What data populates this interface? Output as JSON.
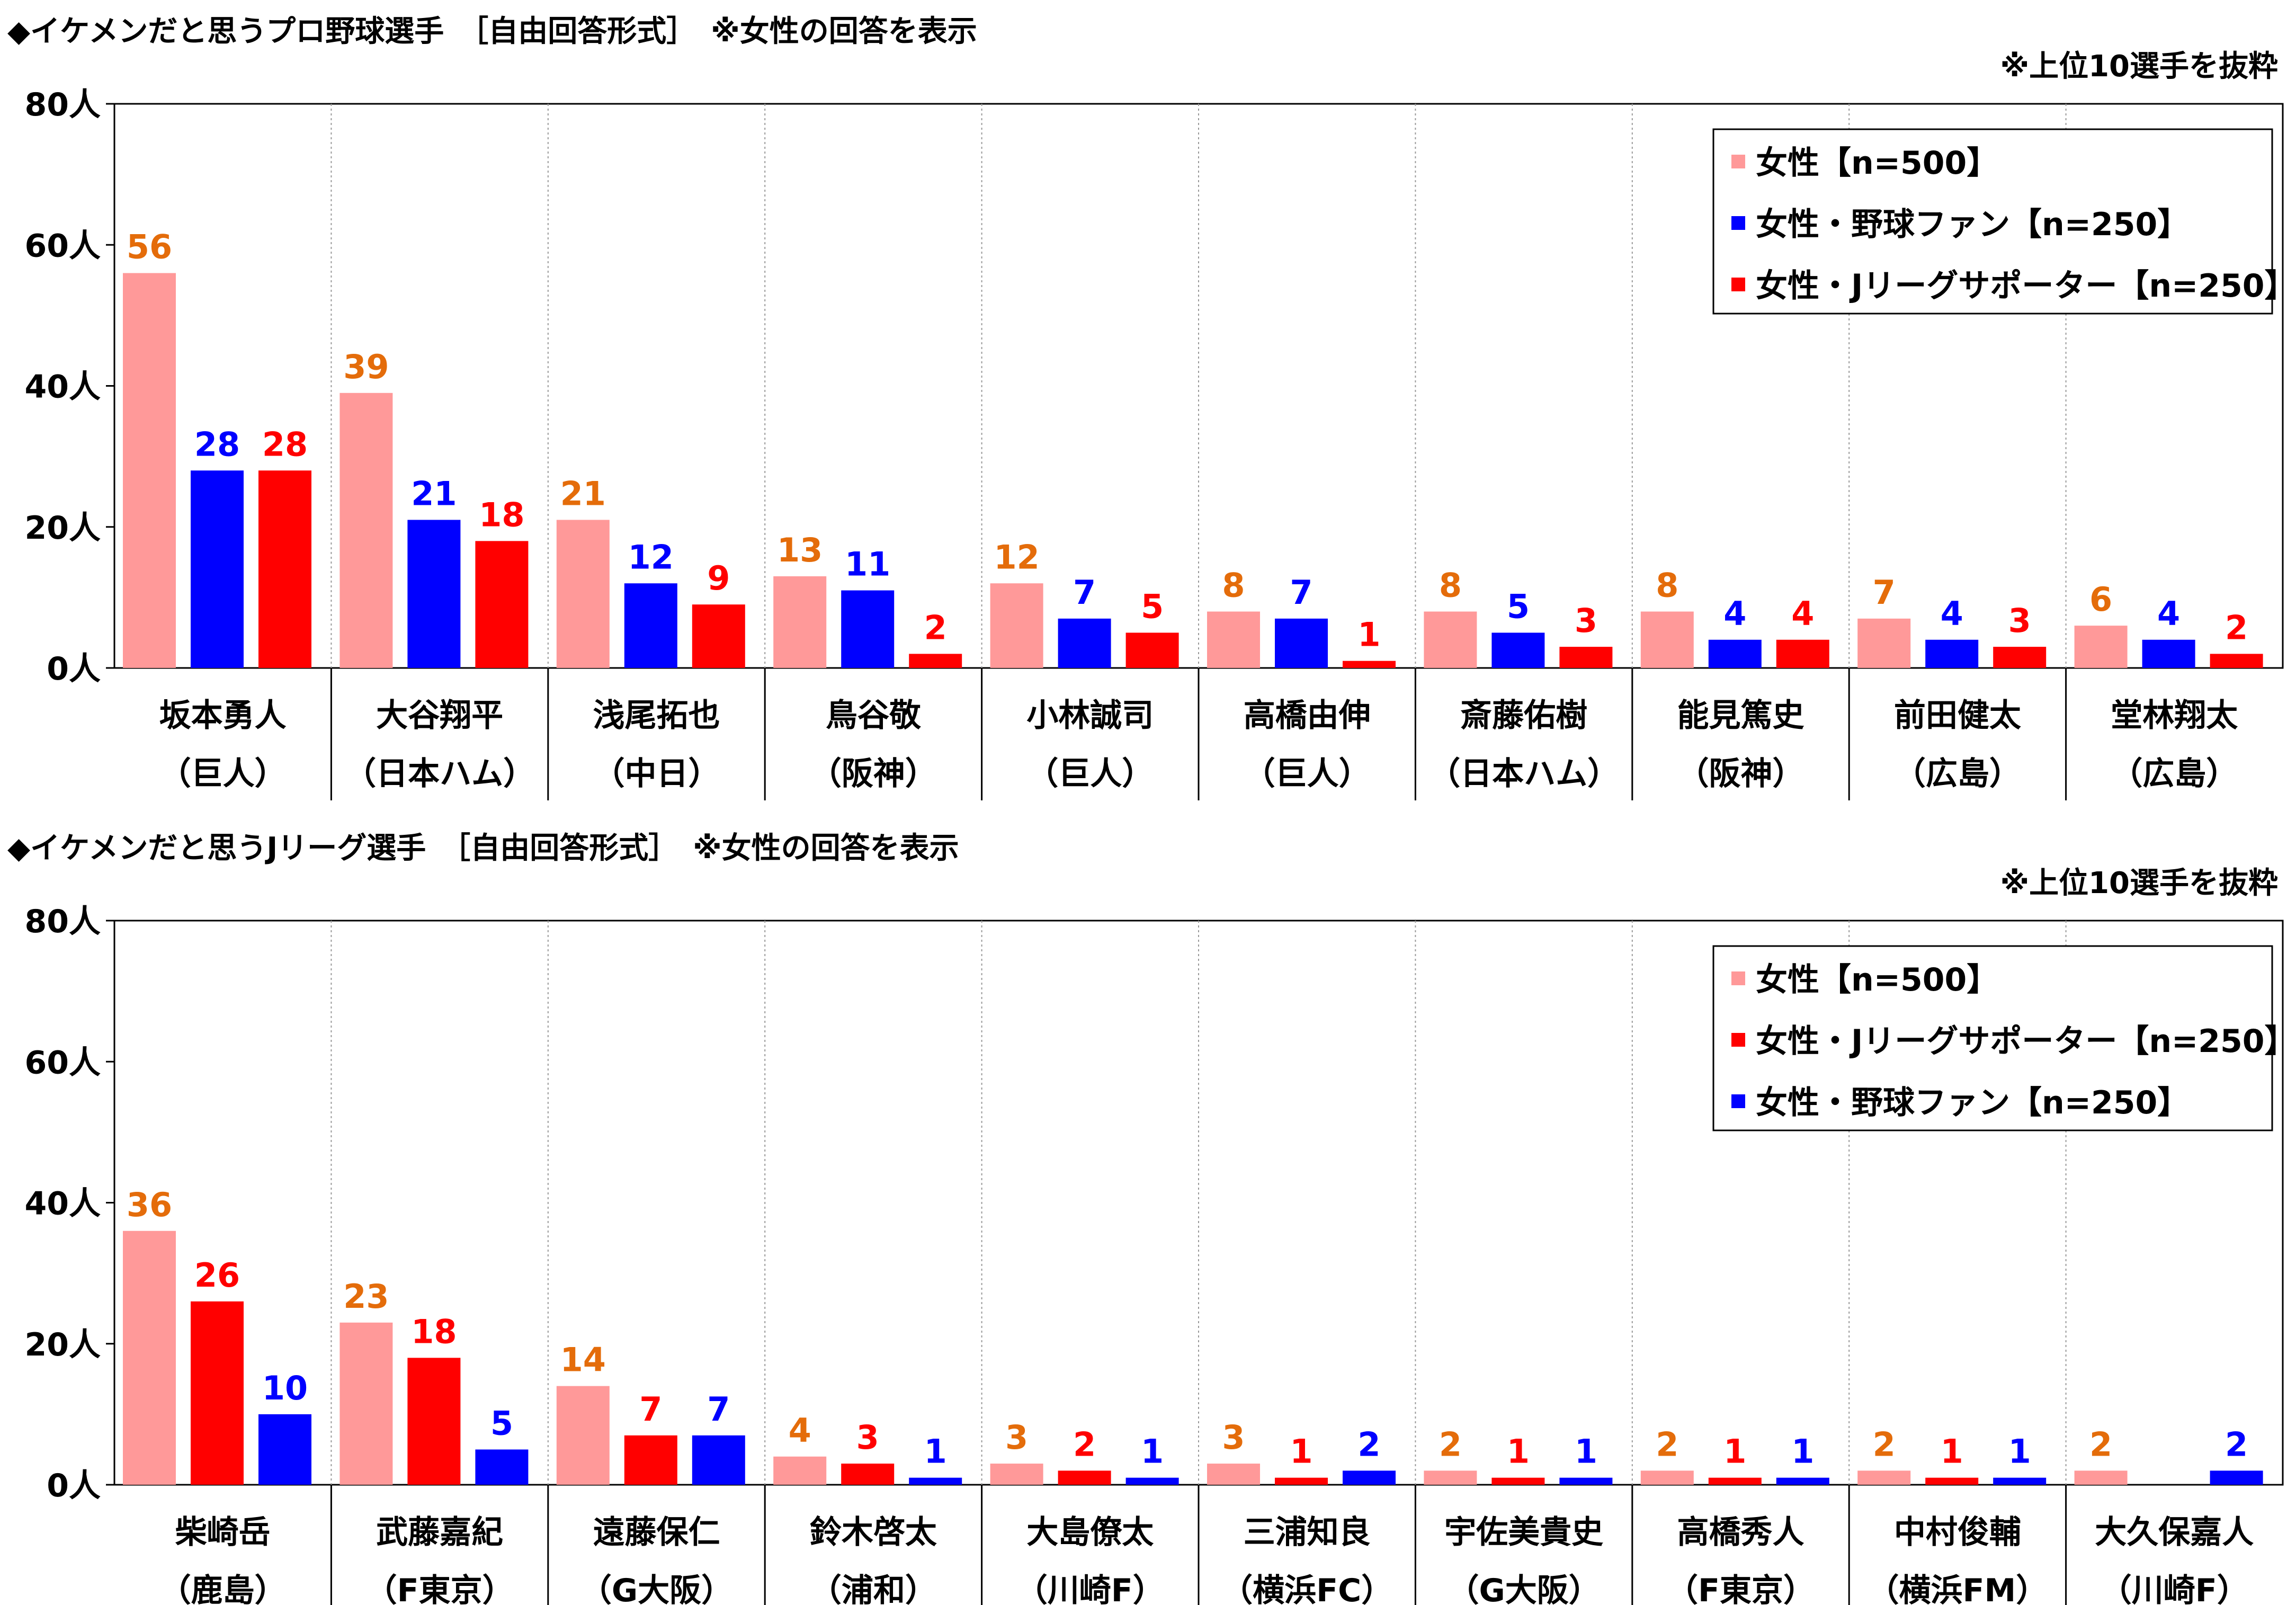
{
  "colors": {
    "pink": "#FF9999",
    "blue": "#0000FF",
    "red": "#FF0000",
    "orange_label": "#E46C0A"
  },
  "charts": [
    {
      "title": "◆イケメンだと思うプロ野球選手　［自由回答形式］　※女性の回答を表示",
      "note": "※上位10選手を抜粋",
      "chart_data": {
        "type": "bar",
        "ylim": [
          0,
          80
        ],
        "yticks": [
          "0人",
          "20人",
          "40人",
          "60人",
          "80人"
        ],
        "legend_position": "top-right",
        "categories": [
          {
            "name": "坂本勇人",
            "team": "（巨人）"
          },
          {
            "name": "大谷翔平",
            "team": "（日本ハム）"
          },
          {
            "name": "浅尾拓也",
            "team": "（中日）"
          },
          {
            "name": "鳥谷敬",
            "team": "（阪神）"
          },
          {
            "name": "小林誠司",
            "team": "（巨人）"
          },
          {
            "name": "高橋由伸",
            "team": "（巨人）"
          },
          {
            "name": "斎藤佑樹",
            "team": "（日本ハム）"
          },
          {
            "name": "能見篤史",
            "team": "（阪神）"
          },
          {
            "name": "前田健太",
            "team": "（広島）"
          },
          {
            "name": "堂林翔太",
            "team": "（広島）"
          }
        ],
        "series": [
          {
            "name": "女性【n=500】",
            "color": "#FF9999",
            "label_color": "#E46C0A",
            "values": [
              56,
              39,
              21,
              13,
              12,
              8,
              8,
              8,
              7,
              6
            ]
          },
          {
            "name": "女性・野球ファン【n=250】",
            "color": "#0000FF",
            "label_color": "#0000FF",
            "values": [
              28,
              21,
              12,
              11,
              7,
              7,
              5,
              4,
              4,
              4
            ]
          },
          {
            "name": "女性・Jリーグサポーター【n=250】",
            "color": "#FF0000",
            "label_color": "#FF0000",
            "values": [
              28,
              18,
              9,
              2,
              5,
              1,
              3,
              4,
              3,
              2
            ]
          }
        ]
      }
    },
    {
      "title": "◆イケメンだと思うJリーグ選手　［自由回答形式］　※女性の回答を表示",
      "note": "※上位10選手を抜粋",
      "chart_data": {
        "type": "bar",
        "ylim": [
          0,
          80
        ],
        "yticks": [
          "0人",
          "20人",
          "40人",
          "60人",
          "80人"
        ],
        "legend_position": "top-right",
        "categories": [
          {
            "name": "柴崎岳",
            "team": "（鹿島）"
          },
          {
            "name": "武藤嘉紀",
            "team": "（F東京）"
          },
          {
            "name": "遠藤保仁",
            "team": "（G大阪）"
          },
          {
            "name": "鈴木啓太",
            "team": "（浦和）"
          },
          {
            "name": "大島僚太",
            "team": "（川崎F）"
          },
          {
            "name": "三浦知良",
            "team": "（横浜FC）"
          },
          {
            "name": "宇佐美貴史",
            "team": "（G大阪）"
          },
          {
            "name": "高橋秀人",
            "team": "（F東京）"
          },
          {
            "name": "中村俊輔",
            "team": "（横浜FM）"
          },
          {
            "name": "大久保嘉人",
            "team": "（川崎F）"
          }
        ],
        "series": [
          {
            "name": "女性【n=500】",
            "color": "#FF9999",
            "label_color": "#E46C0A",
            "values": [
              36,
              23,
              14,
              4,
              3,
              3,
              2,
              2,
              2,
              2
            ]
          },
          {
            "name": "女性・Jリーグサポーター【n=250】",
            "color": "#FF0000",
            "label_color": "#FF0000",
            "values": [
              26,
              18,
              7,
              3,
              2,
              1,
              1,
              1,
              1,
              null
            ]
          },
          {
            "name": "女性・野球ファン【n=250】",
            "color": "#0000FF",
            "label_color": "#0000FF",
            "values": [
              10,
              5,
              7,
              1,
              1,
              2,
              1,
              1,
              1,
              2
            ]
          }
        ]
      }
    }
  ]
}
